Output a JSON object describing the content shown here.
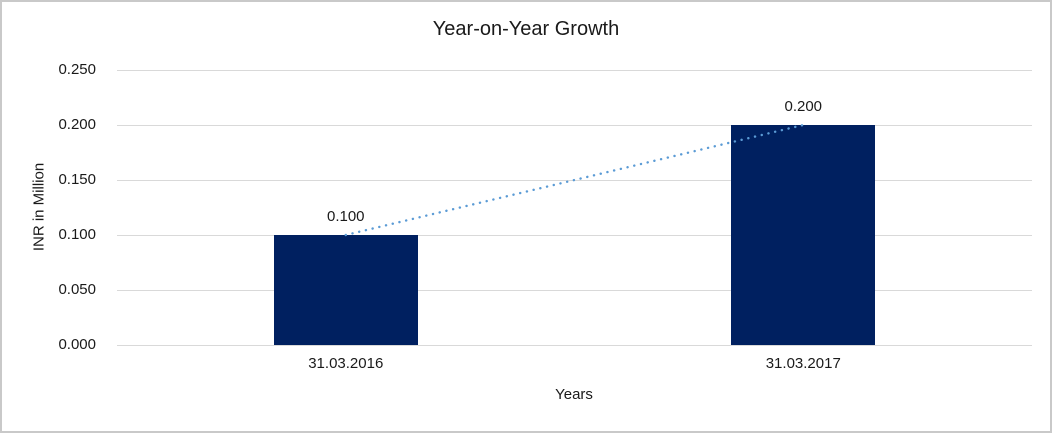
{
  "frame": {
    "background_color": "#ffffff",
    "border_color": "#c9c9c9"
  },
  "chart_data": {
    "type": "bar",
    "title": "Year-on-Year Growth",
    "xlabel": "Years",
    "ylabel": "INR in Million",
    "categories": [
      "31.03.2016",
      "31.03.2017"
    ],
    "values": [
      0.1,
      0.2
    ],
    "data_labels": [
      "0.100",
      "0.200"
    ],
    "y_ticks": {
      "values": [
        0.0,
        0.05,
        0.1,
        0.15,
        0.2,
        0.25
      ],
      "labels": [
        "0.000",
        "0.050",
        "0.100",
        "0.150",
        "0.200",
        "0.250"
      ]
    },
    "ylim": [
      0,
      0.25
    ],
    "grid": "horizontal",
    "legend": "none",
    "bar_color": "#002060",
    "gridline_color": "#d9d9d9",
    "text_color": "#1a1a1a",
    "trendline": {
      "style": "dotted",
      "color": "#5b9bd5",
      "from_value": 0.1,
      "to_value": 0.2
    }
  }
}
